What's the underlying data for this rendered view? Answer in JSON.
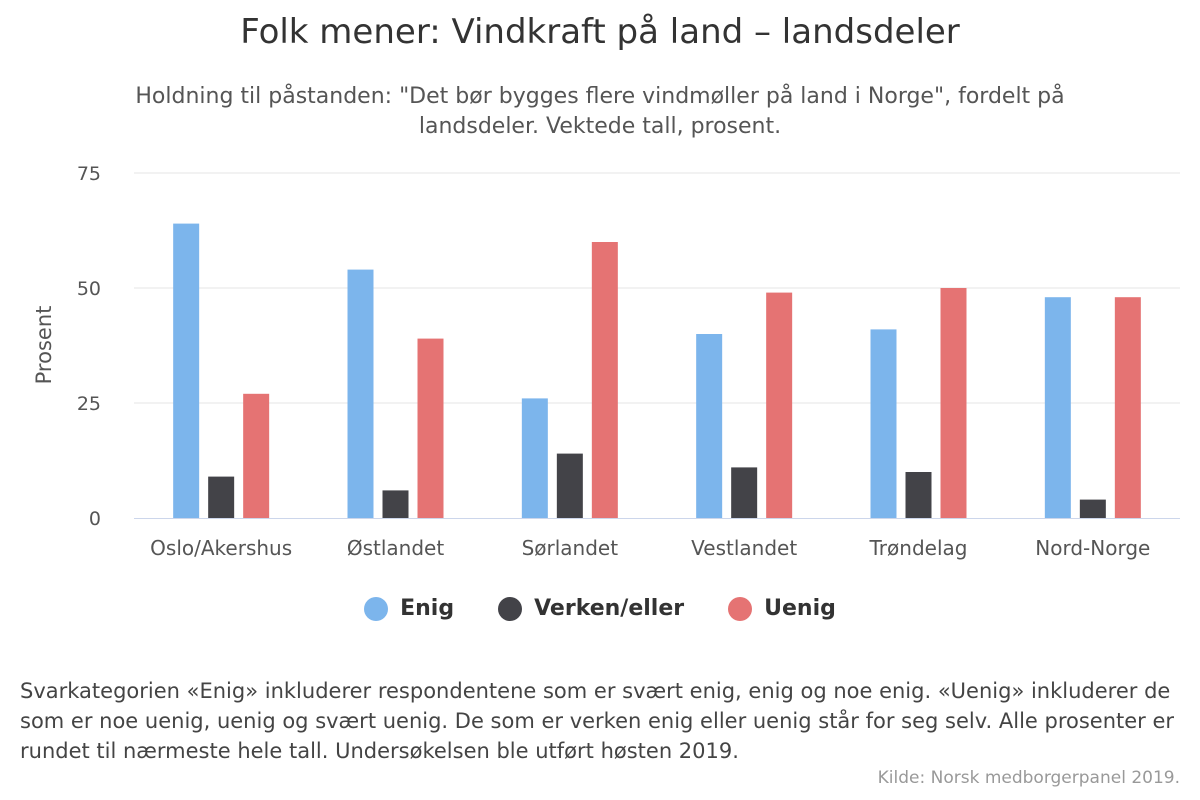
{
  "chart_data": {
    "type": "bar",
    "title": "Folk mener: Vindkraft på land – landsdeler",
    "subtitle": "Holdning til påstanden: \"Det bør bygges flere vindmøller på land i Norge\", fordelt på landsdeler. Vektede tall, prosent.",
    "xlabel": "",
    "ylabel": "Prosent",
    "ylim": [
      0,
      75
    ],
    "yticks": [
      "0",
      "25",
      "50",
      "75"
    ],
    "categories": [
      "Oslo/Akershus",
      "Østlandet",
      "Sørlandet",
      "Vestlandet",
      "Trøndelag",
      "Nord-Norge"
    ],
    "series": [
      {
        "name": "Enig",
        "color": "#7cb5ec",
        "values": [
          64,
          54,
          26,
          40,
          41,
          48
        ]
      },
      {
        "name": "Verken/eller",
        "color": "#434348",
        "values": [
          9,
          6,
          14,
          11,
          10,
          4
        ]
      },
      {
        "name": "Uenig",
        "color": "#e57373",
        "values": [
          27,
          39,
          60,
          49,
          50,
          48
        ]
      }
    ],
    "grid": true,
    "legend": "bottom-center"
  },
  "note": "Svarkategorien «Enig» inkluderer respondentene som er svært enig, enig og noe enig. «Uenig» inkluderer de som er noe uenig, uenig og svært uenig. De som er verken enig eller uenig står for seg selv. Alle prosenter er rundet til nærmeste hele tall. Undersøkelsen ble utført høsten 2019.",
  "credit": "Kilde: Norsk medborgerpanel 2019."
}
